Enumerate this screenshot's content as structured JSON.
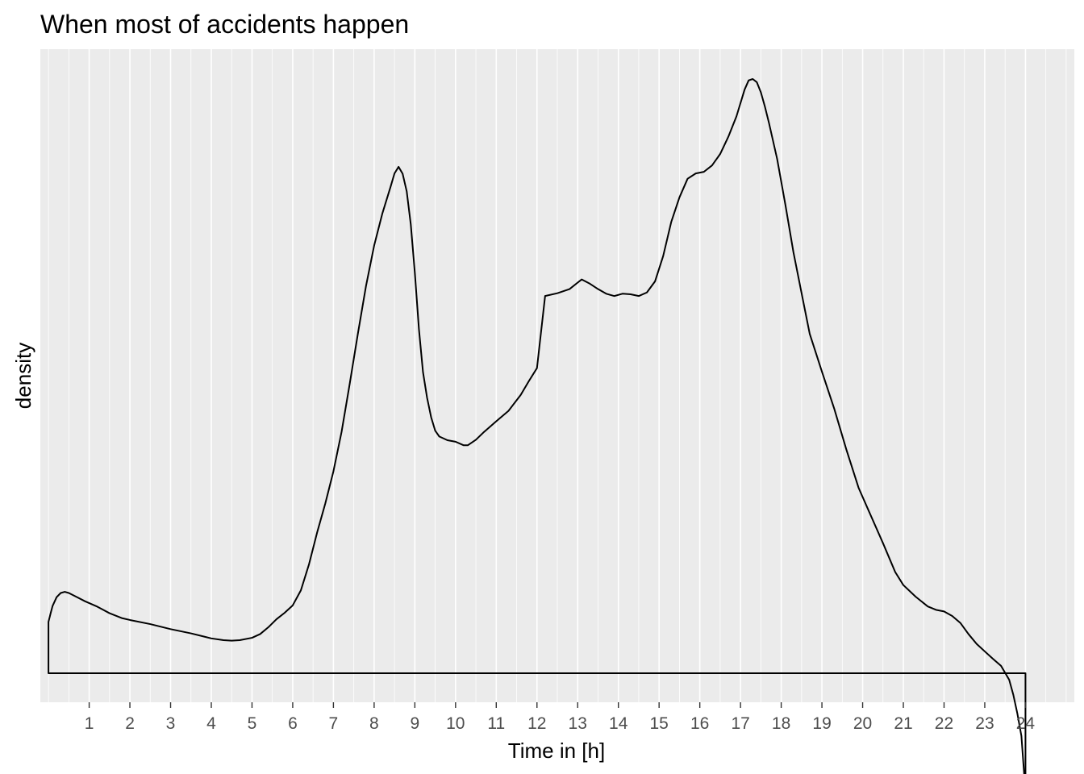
{
  "chart_data": {
    "type": "density",
    "title": "When most of accidents happen",
    "xlabel": "Time in [h]",
    "ylabel": "density",
    "xlim": [
      -0.2,
      25.2
    ],
    "ylim": [
      0,
      1
    ],
    "x_ticks": [
      1,
      2,
      3,
      4,
      5,
      6,
      7,
      8,
      9,
      10,
      11,
      12,
      13,
      14,
      15,
      16,
      17,
      18,
      19,
      20,
      21,
      22,
      23,
      24
    ],
    "x_minor_breaks_per_major": 2,
    "y_ticks_shown": false,
    "grid": true,
    "panel_background": "#ebebeb",
    "grid_color": "#ffffff",
    "line_color": "#000000",
    "fill": "none",
    "series": [
      {
        "x": [
          0,
          0.05,
          0.1,
          0.2,
          0.3,
          0.4,
          0.5,
          0.7,
          0.9,
          1.2,
          1.5,
          1.8,
          2.0,
          2.5,
          3.0,
          3.5,
          4.0,
          4.3,
          4.5,
          4.7,
          5.0,
          5.2,
          5.4,
          5.6,
          5.8,
          6.0,
          6.2,
          6.4,
          6.6,
          6.8,
          7.0,
          7.2,
          7.4,
          7.6,
          7.8,
          8.0,
          8.2,
          8.4,
          8.5,
          8.6,
          8.7,
          8.8,
          8.9,
          9.0,
          9.1,
          9.2,
          9.3,
          9.4,
          9.5,
          9.6,
          9.8,
          10.0,
          10.2,
          10.3,
          10.5,
          10.7,
          11.0,
          11.3,
          11.6,
          11.8,
          12.0,
          12.2,
          12.5,
          12.8,
          13.0,
          13.1,
          13.3,
          13.5,
          13.7,
          13.9,
          14.1,
          14.3,
          14.5,
          14.7,
          14.9,
          15.1,
          15.3,
          15.5,
          15.7,
          15.9,
          16.1,
          16.3,
          16.5,
          16.7,
          16.9,
          17.0,
          17.1,
          17.2,
          17.3,
          17.4,
          17.5,
          17.6,
          17.7,
          17.9,
          18.1,
          18.3,
          18.5,
          18.7,
          19.0,
          19.3,
          19.6,
          19.9,
          20.2,
          20.5,
          20.8,
          21.0,
          21.3,
          21.6,
          21.8,
          22.0,
          22.2,
          22.4,
          22.6,
          22.8,
          23.0,
          23.2,
          23.4,
          23.6,
          23.7,
          23.8,
          23.9,
          24.0
        ],
        "y": [
          0.0863,
          0.1,
          0.113,
          0.128,
          0.135,
          0.137,
          0.135,
          0.128,
          0.121,
          0.112,
          0.101,
          0.0928,
          0.0896,
          0.0827,
          0.0742,
          0.0671,
          0.0586,
          0.0556,
          0.0548,
          0.0556,
          0.0596,
          0.0659,
          0.0773,
          0.0908,
          0.1016,
          0.1142,
          0.1394,
          0.1833,
          0.2369,
          0.2856,
          0.3398,
          0.4061,
          0.487,
          0.5712,
          0.6516,
          0.7196,
          0.7733,
          0.8178,
          0.8411,
          0.8522,
          0.8406,
          0.811,
          0.7555,
          0.6738,
          0.5795,
          0.5069,
          0.4638,
          0.4308,
          0.4082,
          0.3984,
          0.3921,
          0.3896,
          0.3836,
          0.3836,
          0.3929,
          0.4061,
          0.4241,
          0.4415,
          0.4683,
          0.4915,
          0.5135,
          0.6348,
          0.6395,
          0.6465,
          0.6574,
          0.6627,
          0.6555,
          0.6465,
          0.6387,
          0.6348,
          0.6387,
          0.6377,
          0.6348,
          0.6408,
          0.6594,
          0.7021,
          0.7598,
          0.8008,
          0.8322,
          0.8411,
          0.8438,
          0.8546,
          0.8738,
          0.9027,
          0.9371,
          0.9596,
          0.9821,
          0.9977,
          1.0,
          0.9947,
          0.9776,
          0.9534,
          0.9258,
          0.8654,
          0.7893,
          0.7085,
          0.6396,
          0.5712,
          0.5075,
          0.4457,
          0.3764,
          0.3121,
          0.2654,
          0.2189,
          0.1703,
          0.1483,
          0.1289,
          0.1124,
          0.1067,
          0.104,
          0.0963,
          0.0847,
          0.0659,
          0.0493,
          0.0367,
          0.0243,
          0.0124,
          -0.011,
          -0.0359,
          -0.0676,
          -0.1055,
          -0.2004
        ]
      }
    ]
  }
}
